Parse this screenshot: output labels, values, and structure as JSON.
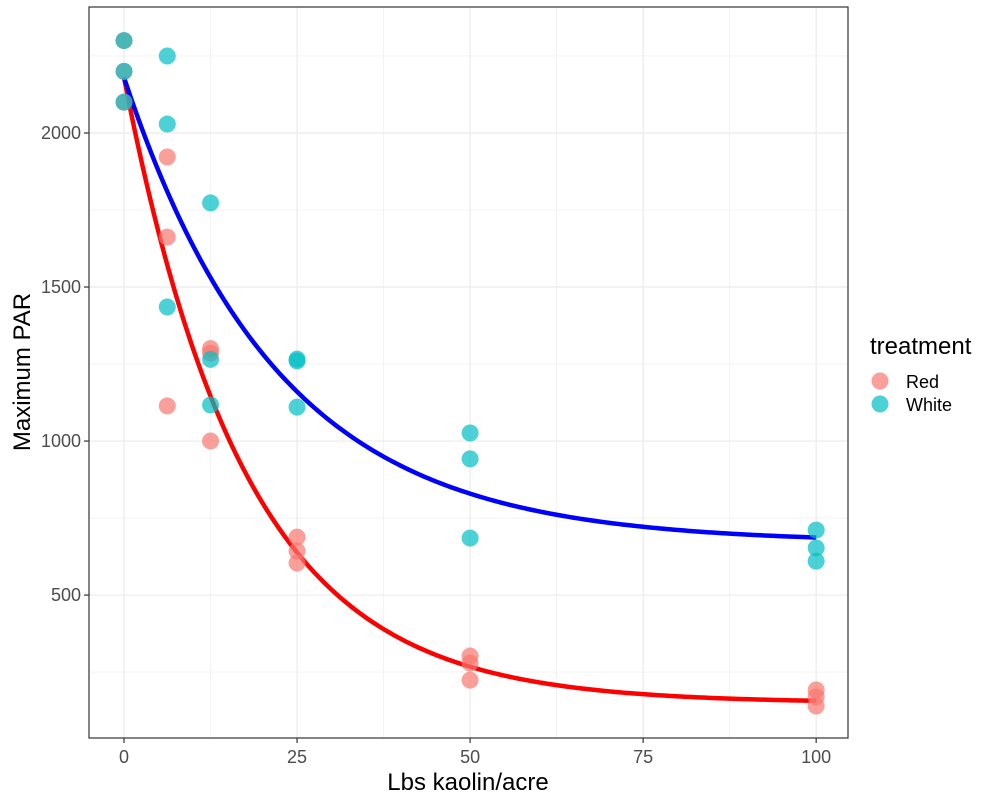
{
  "chart_data": {
    "type": "scatter",
    "title": "",
    "xlabel": "Lbs kaolin/acre",
    "ylabel": "Maximum PAR",
    "xlim": [
      -5.06,
      104.6
    ],
    "ylim": [
      36,
      2409
    ],
    "x_ticks": [
      0,
      25,
      50,
      75,
      100
    ],
    "x_tick_labels": [
      "0",
      "25",
      "50",
      "75",
      "100"
    ],
    "y_ticks": [
      500,
      1000,
      1500,
      2000
    ],
    "y_tick_labels": [
      "500",
      "1000",
      "1500",
      "2000"
    ],
    "x_minor_ticks": [
      12.5,
      37.5,
      62.5,
      87.5
    ],
    "y_minor_ticks": [
      250,
      750,
      1250,
      1750,
      2250
    ],
    "grid": true,
    "legend": {
      "title": "treatment",
      "position": "right",
      "entries": [
        {
          "label": "Red",
          "color": "#F8766D"
        },
        {
          "label": "White",
          "color": "#00BFC4"
        }
      ]
    },
    "series": [
      {
        "name": "Red",
        "color": "#F8766D",
        "points": [
          {
            "x": 0,
            "y": 2300
          },
          {
            "x": 0,
            "y": 2200
          },
          {
            "x": 0,
            "y": 2100
          },
          {
            "x": 6.25,
            "y": 1922
          },
          {
            "x": 6.25,
            "y": 1662
          },
          {
            "x": 6.25,
            "y": 1114
          },
          {
            "x": 12.5,
            "y": 1300
          },
          {
            "x": 12.5,
            "y": 1285
          },
          {
            "x": 12.5,
            "y": 1000
          },
          {
            "x": 25,
            "y": 688
          },
          {
            "x": 25,
            "y": 643
          },
          {
            "x": 25,
            "y": 604
          },
          {
            "x": 50,
            "y": 302
          },
          {
            "x": 50,
            "y": 279
          },
          {
            "x": 50,
            "y": 224
          },
          {
            "x": 100,
            "y": 192
          },
          {
            "x": 100,
            "y": 169
          },
          {
            "x": 100,
            "y": 140
          }
        ],
        "fit": {
          "type": "exponential-decay",
          "asymptote": 150,
          "amplitude": 2030,
          "rate": 0.057,
          "x_range": [
            0,
            100
          ],
          "line_color": "#FF0000"
        }
      },
      {
        "name": "White",
        "color": "#00BFC4",
        "points": [
          {
            "x": 0,
            "y": 2300
          },
          {
            "x": 0,
            "y": 2200
          },
          {
            "x": 0,
            "y": 2100
          },
          {
            "x": 6.25,
            "y": 2250
          },
          {
            "x": 6.25,
            "y": 2029
          },
          {
            "x": 6.25,
            "y": 1435
          },
          {
            "x": 12.5,
            "y": 1773
          },
          {
            "x": 12.5,
            "y": 1265
          },
          {
            "x": 12.5,
            "y": 1117
          },
          {
            "x": 25,
            "y": 1266
          },
          {
            "x": 25,
            "y": 1260
          },
          {
            "x": 25,
            "y": 1110
          },
          {
            "x": 50,
            "y": 1026
          },
          {
            "x": 50,
            "y": 942
          },
          {
            "x": 50,
            "y": 685
          },
          {
            "x": 100,
            "y": 711
          },
          {
            "x": 100,
            "y": 653
          },
          {
            "x": 100,
            "y": 610
          }
        ],
        "fit": {
          "type": "exponential-decay",
          "asymptote": 670,
          "amplitude": 1510,
          "rate": 0.045,
          "x_range": [
            0,
            100
          ],
          "line_color": "#0000FF"
        }
      }
    ]
  }
}
